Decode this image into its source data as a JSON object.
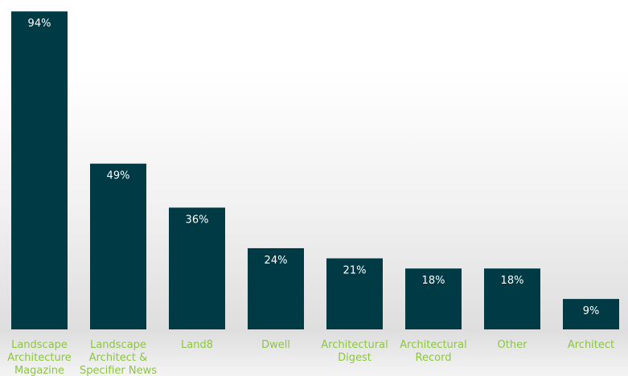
{
  "chart_data": {
    "type": "bar",
    "categories": [
      [
        "Landscape",
        "Architecture",
        "Magazine"
      ],
      [
        "Landscape",
        "Architect &",
        "Specifier News"
      ],
      [
        "Land8"
      ],
      [
        "Dwell"
      ],
      [
        "Architectural",
        "Digest"
      ],
      [
        "Architectural",
        "Record"
      ],
      [
        "Other"
      ],
      [
        "Architect"
      ]
    ],
    "values": [
      94,
      49,
      36,
      24,
      21,
      18,
      18,
      9
    ],
    "value_labels": [
      "94%",
      "49%",
      "36%",
      "24%",
      "21%",
      "18%",
      "18%",
      "9%"
    ],
    "ylim": [
      0,
      95
    ],
    "grid": false,
    "legend": "none"
  },
  "colors": {
    "bar": "#003a45",
    "value_text": "#ffffff",
    "category_text": "#8cc63f"
  }
}
